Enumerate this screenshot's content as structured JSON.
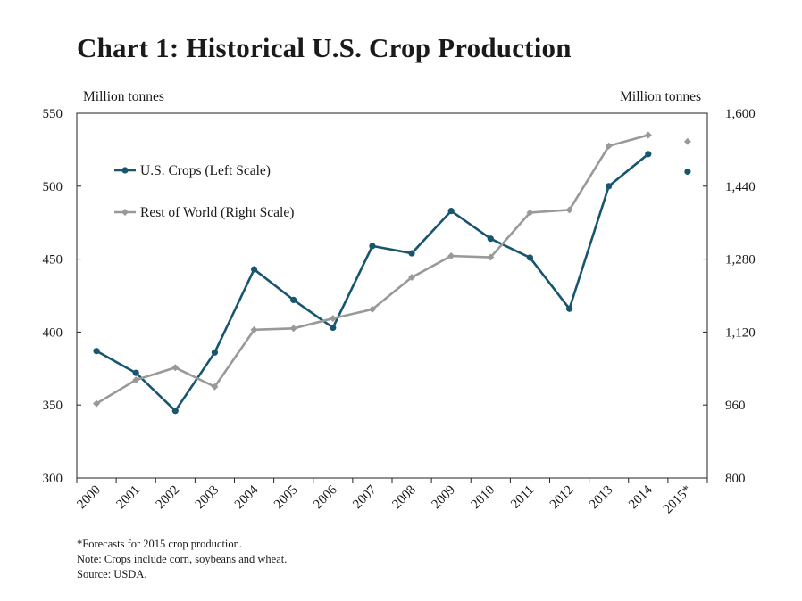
{
  "chart_data": {
    "type": "line",
    "title": "Chart 1: Historical U.S. Crop Production",
    "categories": [
      "2000",
      "2001",
      "2002",
      "2003",
      "2004",
      "2005",
      "2006",
      "2007",
      "2008",
      "2009",
      "2010",
      "2011",
      "2012",
      "2013",
      "2014",
      "2015*"
    ],
    "y_left": {
      "label": "Million tonnes",
      "lim": [
        300,
        550
      ],
      "ticks": [
        "300",
        "350",
        "400",
        "450",
        "500",
        "550"
      ]
    },
    "y_right": {
      "label": "Million tonnes",
      "lim": [
        800,
        1600
      ],
      "ticks": [
        "800",
        "960",
        "1,120",
        "1,280",
        "1,440",
        "1,600"
      ]
    },
    "series": [
      {
        "name": "U.S. Crops (Left Scale)",
        "axis": "left",
        "color": "#17566e",
        "marker": "circle",
        "values": [
          387,
          372,
          346,
          386,
          443,
          422,
          403,
          459,
          454,
          483,
          464,
          451,
          416,
          500,
          522,
          null
        ],
        "forecast": 510
      },
      {
        "name": "Rest of World (Right Scale)",
        "axis": "right",
        "color": "#999999",
        "marker": "diamond",
        "values": [
          963,
          1015,
          1042,
          1000,
          1125,
          1128,
          1150,
          1170,
          1240,
          1287,
          1284,
          1382,
          1388,
          1528,
          1552,
          null
        ],
        "forecast": 1538
      }
    ],
    "legend": "top-left",
    "grid": false
  },
  "notes": [
    "*Forecasts for 2015 crop production.",
    "Note: Crops include corn, soybeans and wheat.",
    "Source: USDA."
  ]
}
